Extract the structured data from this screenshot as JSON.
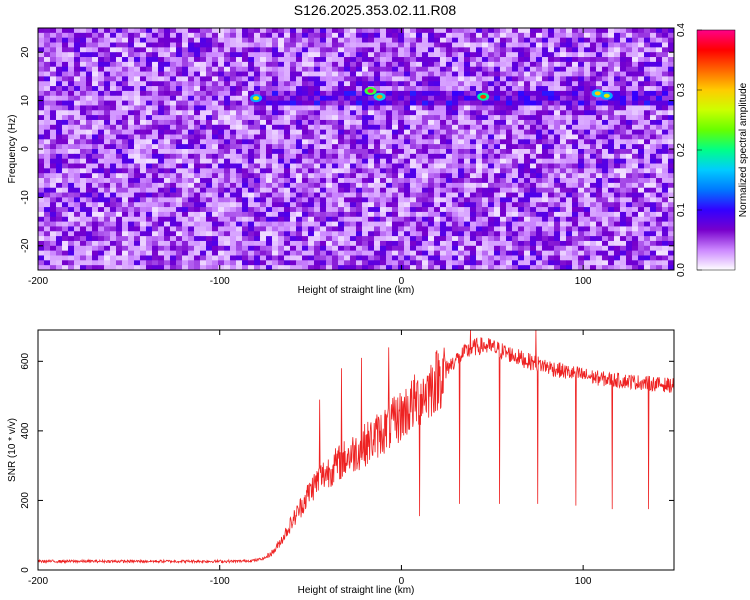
{
  "chart_data": [
    {
      "type": "heatmap",
      "title": "S126.2025.353.02.11.R08",
      "xlabel": "Height of straight line (km)",
      "ylabel": "Frequency (Hz)",
      "xlim": [
        -200,
        150
      ],
      "ylim": [
        -25,
        25
      ],
      "x_ticks": [
        -200,
        -100,
        0,
        100
      ],
      "x_tick_labels": [
        "-200",
        "-100",
        "0",
        "100"
      ],
      "y_ticks": [
        -20,
        -10,
        0,
        10,
        20
      ],
      "y_tick_labels": [
        "-20",
        "-10",
        "0",
        "10",
        "20"
      ],
      "colorbar": {
        "label": "Normalized spectral amplitude",
        "range": [
          0,
          0.4
        ],
        "ticks": [
          0,
          0.1,
          0.2,
          0.3,
          0.4
        ],
        "tick_labels": [
          "0.0",
          "0.1",
          "0.2",
          "0.3",
          "0.4"
        ],
        "colormap": [
          "#ffffff",
          "#cc88ff",
          "#7700cc",
          "#3300ff",
          "#0077ff",
          "#00ccff",
          "#00ff88",
          "#66ff00",
          "#ccff00",
          "#ffcc00",
          "#ff6600",
          "#ff0000",
          "#ff0088"
        ]
      },
      "features": [
        {
          "kind": "band",
          "freq_hz": 10.5,
          "x_range": [
            -85,
            150
          ],
          "description": "strong narrow band near 10-11 Hz"
        }
      ],
      "peaks": [
        {
          "x": -80,
          "y": 10.5,
          "amplitude": 0.28
        },
        {
          "x": -17,
          "y": 12.0,
          "amplitude": 0.4
        },
        {
          "x": -12,
          "y": 10.8,
          "amplitude": 0.32
        },
        {
          "x": 45,
          "y": 10.8,
          "amplitude": 0.35
        },
        {
          "x": 108,
          "y": 11.5,
          "amplitude": 0.3
        },
        {
          "x": 113,
          "y": 11.0,
          "amplitude": 0.28
        }
      ],
      "background_amplitude": "0.0-0.1"
    },
    {
      "type": "line",
      "xlabel": "Height of straight line (km)",
      "ylabel": "SNR (10 * v/v)",
      "xlim": [
        -200,
        150
      ],
      "ylim": [
        0,
        690
      ],
      "x_ticks": [
        -200,
        -100,
        0,
        100
      ],
      "x_tick_labels": [
        "-200",
        "-100",
        "0",
        "100"
      ],
      "y_ticks": [
        0,
        200,
        400,
        600
      ],
      "y_tick_labels": [
        "0",
        "200",
        "400",
        "600"
      ],
      "line_color": "#ee2222",
      "series": [
        {
          "x": [
            -200,
            -180,
            -160,
            -140,
            -120,
            -100,
            -90,
            -80,
            -75,
            -70,
            -65,
            -60,
            -55,
            -50,
            -45,
            -40,
            -35,
            -30,
            -25,
            -20,
            -15,
            -10,
            -5,
            0,
            5,
            10,
            15,
            20,
            25,
            30,
            35,
            40,
            45,
            50,
            55,
            60,
            70,
            80,
            90,
            100,
            110,
            120,
            130,
            140,
            150
          ],
          "y": [
            25,
            25,
            25,
            25,
            25,
            25,
            25,
            28,
            35,
            55,
            95,
            140,
            185,
            230,
            265,
            285,
            305,
            325,
            340,
            360,
            380,
            400,
            420,
            445,
            470,
            495,
            520,
            550,
            580,
            605,
            625,
            640,
            645,
            640,
            630,
            620,
            600,
            585,
            570,
            560,
            550,
            545,
            540,
            535,
            530
          ]
        }
      ],
      "dips": [
        {
          "x": 10,
          "y": 155
        },
        {
          "x": 32,
          "y": 190
        },
        {
          "x": 54,
          "y": 190
        },
        {
          "x": 75,
          "y": 190
        },
        {
          "x": 96,
          "y": 185
        },
        {
          "x": 116,
          "y": 175
        },
        {
          "x": 136,
          "y": 175
        }
      ],
      "spikes": [
        {
          "x": -45,
          "y": 490
        },
        {
          "x": -33,
          "y": 580
        },
        {
          "x": -22,
          "y": 610
        },
        {
          "x": -7,
          "y": 640
        },
        {
          "x": 38,
          "y": 690
        },
        {
          "x": 74,
          "y": 690
        }
      ]
    }
  ]
}
